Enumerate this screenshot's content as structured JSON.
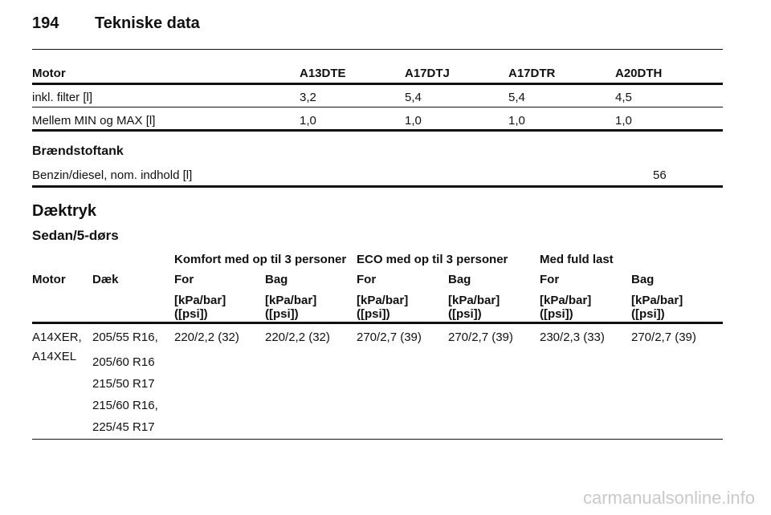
{
  "header": {
    "page_number": "194",
    "title": "Tekniske data"
  },
  "engine_table": {
    "columns": [
      "Motor",
      "A13DTE",
      "A17DTJ",
      "A17DTR",
      "A20DTH"
    ],
    "rows": [
      [
        "inkl. filter [l]",
        "3,2",
        "5,4",
        "5,4",
        "4,5"
      ],
      [
        "Mellem MIN og MAX [l]",
        "1,0",
        "1,0",
        "1,0",
        "1,0"
      ]
    ]
  },
  "fuel_tank": {
    "title": "Brændstoftank",
    "label": "Benzin/diesel, nom. indhold [l]",
    "value": "56"
  },
  "tire_pressure": {
    "title": "Dæktryk",
    "subtitle": "Sedan/5-dørs",
    "groups": [
      "Komfort med op til 3 personer",
      "ECO med op til 3 personer",
      "Med fuld last"
    ],
    "head_motor": "Motor",
    "head_tire": "Dæk",
    "positions": [
      "For",
      "Bag",
      "For",
      "Bag",
      "For",
      "Bag"
    ],
    "units": [
      "[kPa/bar] ([psi])",
      "[kPa/bar] ([psi])",
      "[kPa/bar] ([psi])",
      "[kPa/bar] ([psi])",
      "[kPa/bar] ([psi])",
      "[kPa/bar] ([psi])"
    ],
    "row": {
      "motor_lines": [
        "A14XER,",
        "A14XEL"
      ],
      "tires": [
        "205/55 R16,",
        "205/60 R16",
        "215/50 R17",
        "215/60 R16,",
        "225/45 R17"
      ],
      "values": [
        "220/2,2 (32)",
        "220/2,2 (32)",
        "270/2,7 (39)",
        "270/2,7 (39)",
        "230/2,3 (33)",
        "270/2,7 (39)"
      ]
    }
  },
  "watermark": "carmanualsonline.info"
}
